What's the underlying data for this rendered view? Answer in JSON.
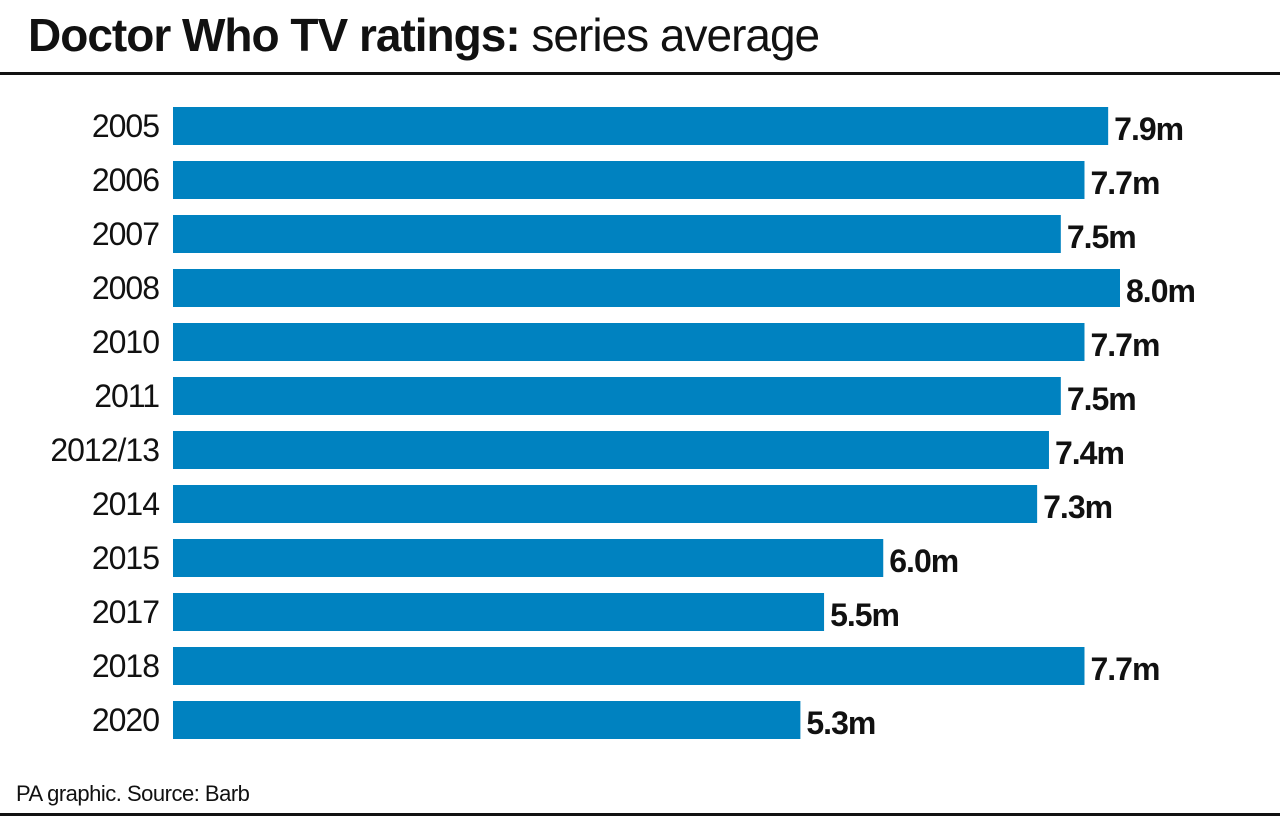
{
  "title_bold": "Doctor Who TV ratings:",
  "title_regular": " series average",
  "source": "PA graphic. Source: Barb",
  "chart_data": {
    "type": "bar",
    "orientation": "horizontal",
    "title": "Doctor Who TV ratings: series average",
    "xlabel": "",
    "ylabel": "",
    "xlim": [
      0,
      8.0
    ],
    "grid": false,
    "bar_color": "#0082c0",
    "categories": [
      "2005",
      "2006",
      "2007",
      "2008",
      "2010",
      "2011",
      "2012/13",
      "2014",
      "2015",
      "2017",
      "2018",
      "2020"
    ],
    "values": [
      7.9,
      7.7,
      7.5,
      8.0,
      7.7,
      7.5,
      7.4,
      7.3,
      6.0,
      5.5,
      7.7,
      5.3
    ],
    "value_labels": [
      "7.9m",
      "7.7m",
      "7.5m",
      "8.0m",
      "7.7m",
      "7.5m",
      "7.4m",
      "7.3m",
      "6.0m",
      "5.5m",
      "7.7m",
      "5.3m"
    ]
  }
}
